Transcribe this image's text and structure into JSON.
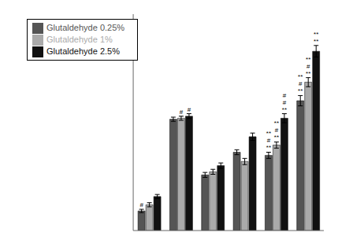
{
  "chart_data": {
    "type": "bar",
    "categories": [
      null,
      null,
      null,
      null,
      null,
      null
    ],
    "series": [
      {
        "name": "Glutaldehyde 0.25%",
        "color": "#555555",
        "values": [
          0.095,
          0.54,
          0.27,
          0.38,
          0.365,
          0.63
        ],
        "errors": [
          0.008,
          0.01,
          0.012,
          0.012,
          0.015,
          0.025
        ],
        "annotations": [
          [
            "#"
          ],
          [],
          [],
          [],
          [
            "**",
            "#",
            "**"
          ],
          [
            "**",
            "#",
            "**"
          ]
        ]
      },
      {
        "name": "Glutaldehyde 1%",
        "color": "#aaaaaa",
        "values": [
          0.125,
          0.545,
          0.285,
          0.335,
          0.415,
          0.72
        ],
        "errors": [
          0.01,
          0.01,
          0.012,
          0.015,
          0.015,
          0.022
        ],
        "annotations": [
          [],
          [
            "#"
          ],
          [],
          [],
          [
            "**",
            "#",
            "**"
          ],
          [
            "**",
            "#",
            "**"
          ]
        ]
      },
      {
        "name": "Glutaldehyde 2.5%",
        "color": "#111111",
        "values": [
          0.165,
          0.555,
          0.315,
          0.455,
          0.545,
          0.87
        ],
        "errors": [
          0.01,
          0.012,
          0.013,
          0.018,
          0.022,
          0.028
        ],
        "annotations": [
          [],
          [
            "#"
          ],
          [],
          [],
          [
            "**",
            "#",
            "#"
          ],
          [
            "**",
            "**"
          ]
        ]
      }
    ],
    "ylim": [
      0,
      1.05
    ],
    "yticks": [
      0.2,
      0.4,
      0.6,
      0.8,
      1.0
    ],
    "tick_labels": false,
    "legend": "upper left"
  }
}
